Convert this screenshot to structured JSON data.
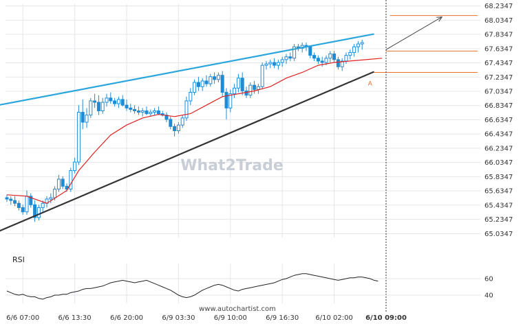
{
  "chart_data": {
    "type": "candlestick",
    "y_ticks": [
      "68.2347",
      "68.0347",
      "67.8347",
      "67.6347",
      "67.4347",
      "67.2347",
      "67.0347",
      "66.8347",
      "66.6347",
      "66.4347",
      "66.2347",
      "66.0347",
      "65.8347",
      "65.6347",
      "65.4347",
      "65.2347",
      "65.0347"
    ],
    "y_range": [
      64.98,
      68.26
    ],
    "x_ticks": [
      {
        "label": "6/6 07:00",
        "index": 4
      },
      {
        "label": "6/6 13:30",
        "index": 17
      },
      {
        "label": "6/6 20:00",
        "index": 30
      },
      {
        "label": "6/9 03:30",
        "index": 43
      },
      {
        "label": "6/9 10:00",
        "index": 56
      },
      {
        "label": "6/9 16:30",
        "index": 69
      },
      {
        "label": "6/10 02:00",
        "index": 82
      },
      {
        "label": "6/10 09:00",
        "index": 95,
        "bold": true
      }
    ],
    "candles": [
      [
        65.54,
        65.58,
        65.48,
        65.52
      ],
      [
        65.52,
        65.56,
        65.44,
        65.5
      ],
      [
        65.5,
        65.56,
        65.42,
        65.46
      ],
      [
        65.46,
        65.5,
        65.36,
        65.4
      ],
      [
        65.4,
        65.44,
        65.3,
        65.34
      ],
      [
        65.34,
        65.64,
        65.3,
        65.56
      ],
      [
        65.56,
        65.6,
        65.4,
        65.44
      ],
      [
        65.44,
        65.5,
        65.2,
        65.26
      ],
      [
        65.26,
        65.44,
        65.22,
        65.4
      ],
      [
        65.4,
        65.5,
        65.34,
        65.46
      ],
      [
        65.46,
        65.56,
        65.4,
        65.52
      ],
      [
        65.52,
        65.6,
        65.46,
        65.54
      ],
      [
        65.54,
        65.7,
        65.5,
        65.66
      ],
      [
        65.66,
        65.86,
        65.62,
        65.8
      ],
      [
        65.8,
        65.84,
        65.66,
        65.7
      ],
      [
        65.7,
        65.74,
        65.62,
        65.66
      ],
      [
        65.66,
        65.96,
        65.62,
        65.92
      ],
      [
        65.92,
        66.1,
        65.88,
        66.04
      ],
      [
        66.04,
        66.84,
        66.0,
        66.74
      ],
      [
        66.74,
        66.92,
        66.5,
        66.6
      ],
      [
        66.6,
        66.8,
        66.52,
        66.7
      ],
      [
        66.7,
        66.94,
        66.66,
        66.9
      ],
      [
        66.9,
        67.0,
        66.8,
        66.88
      ],
      [
        66.88,
        66.98,
        66.7,
        66.76
      ],
      [
        66.76,
        66.94,
        66.72,
        66.88
      ],
      [
        66.88,
        67.0,
        66.82,
        66.94
      ],
      [
        66.94,
        67.02,
        66.86,
        66.9
      ],
      [
        66.9,
        66.94,
        66.82,
        66.86
      ],
      [
        66.86,
        66.96,
        66.8,
        66.92
      ],
      [
        66.92,
        66.98,
        66.82,
        66.84
      ],
      [
        66.84,
        66.92,
        66.76,
        66.8
      ],
      [
        66.8,
        66.86,
        66.74,
        66.78
      ],
      [
        66.78,
        66.84,
        66.72,
        66.76
      ],
      [
        66.76,
        66.82,
        66.7,
        66.74
      ],
      [
        66.74,
        66.8,
        66.68,
        66.76
      ],
      [
        66.76,
        66.82,
        66.7,
        66.72
      ],
      [
        66.72,
        66.78,
        66.68,
        66.74
      ],
      [
        66.74,
        66.8,
        66.7,
        66.76
      ],
      [
        66.76,
        66.82,
        66.7,
        66.72
      ],
      [
        66.72,
        66.76,
        66.68,
        66.7
      ],
      [
        66.7,
        66.74,
        66.6,
        66.64
      ],
      [
        66.64,
        66.68,
        66.5,
        66.54
      ],
      [
        66.54,
        66.58,
        66.4,
        66.48
      ],
      [
        66.48,
        66.6,
        66.44,
        66.56
      ],
      [
        66.56,
        66.7,
        66.52,
        66.66
      ],
      [
        66.66,
        66.96,
        66.62,
        66.9
      ],
      [
        66.9,
        67.08,
        66.84,
        67.02
      ],
      [
        67.02,
        67.2,
        66.98,
        67.16
      ],
      [
        67.16,
        67.24,
        67.04,
        67.1
      ],
      [
        67.1,
        67.22,
        67.04,
        67.18
      ],
      [
        67.18,
        67.26,
        67.1,
        67.14
      ],
      [
        67.14,
        67.28,
        67.1,
        67.24
      ],
      [
        67.24,
        67.3,
        67.14,
        67.2
      ],
      [
        67.2,
        67.3,
        67.16,
        67.26
      ],
      [
        67.26,
        67.32,
        66.96,
        67.02
      ],
      [
        67.02,
        67.08,
        66.64,
        66.8
      ],
      [
        66.8,
        67.06,
        66.74,
        67.0
      ],
      [
        67.0,
        67.14,
        66.94,
        67.08
      ],
      [
        67.08,
        67.28,
        67.02,
        67.22
      ],
      [
        67.22,
        67.3,
        66.98,
        67.04
      ],
      [
        67.04,
        67.1,
        66.94,
        66.98
      ],
      [
        66.98,
        67.16,
        66.94,
        67.12
      ],
      [
        67.12,
        67.18,
        67.0,
        67.06
      ],
      [
        67.06,
        67.14,
        67.0,
        67.1
      ],
      [
        67.1,
        67.44,
        67.06,
        67.4
      ],
      [
        67.4,
        67.46,
        67.34,
        67.42
      ],
      [
        67.42,
        67.48,
        67.36,
        67.44
      ],
      [
        67.44,
        67.5,
        67.36,
        67.4
      ],
      [
        67.4,
        67.48,
        67.34,
        67.44
      ],
      [
        67.44,
        67.52,
        67.38,
        67.48
      ],
      [
        67.48,
        67.56,
        67.42,
        67.52
      ],
      [
        67.52,
        67.58,
        67.46,
        67.5
      ],
      [
        67.5,
        67.7,
        67.46,
        67.66
      ],
      [
        67.66,
        67.7,
        67.6,
        67.64
      ],
      [
        67.64,
        67.72,
        67.58,
        67.68
      ],
      [
        67.68,
        67.72,
        67.6,
        67.66
      ],
      [
        67.66,
        67.68,
        67.5,
        67.54
      ],
      [
        67.54,
        67.58,
        67.46,
        67.5
      ],
      [
        67.5,
        67.54,
        67.42,
        67.46
      ],
      [
        67.46,
        67.52,
        67.38,
        67.44
      ],
      [
        67.44,
        67.54,
        67.4,
        67.5
      ],
      [
        67.5,
        67.6,
        67.44,
        67.56
      ],
      [
        67.56,
        67.6,
        67.44,
        67.48
      ],
      [
        67.48,
        67.52,
        67.34,
        67.38
      ],
      [
        67.38,
        67.5,
        67.32,
        67.46
      ],
      [
        67.46,
        67.58,
        67.42,
        67.54
      ],
      [
        67.54,
        67.62,
        67.48,
        67.58
      ],
      [
        67.58,
        67.7,
        67.52,
        67.66
      ],
      [
        67.66,
        67.74,
        67.58,
        67.7
      ],
      [
        67.7,
        67.76,
        67.62,
        67.72
      ]
    ],
    "ma": [
      [
        0,
        65.58
      ],
      [
        5,
        65.56
      ],
      [
        10,
        65.46
      ],
      [
        15,
        65.64
      ],
      [
        18,
        65.92
      ],
      [
        22,
        66.18
      ],
      [
        26,
        66.42
      ],
      [
        30,
        66.56
      ],
      [
        34,
        66.66
      ],
      [
        38,
        66.71
      ],
      [
        42,
        66.68
      ],
      [
        46,
        66.72
      ],
      [
        50,
        66.84
      ],
      [
        54,
        66.96
      ],
      [
        58,
        67.0
      ],
      [
        62,
        67.04
      ],
      [
        66,
        67.1
      ],
      [
        70,
        67.22
      ],
      [
        74,
        67.3
      ],
      [
        78,
        67.4
      ],
      [
        82,
        67.44
      ],
      [
        86,
        67.46
      ],
      [
        90,
        67.48
      ],
      [
        94,
        67.5
      ]
    ],
    "resistance_line": [
      [
        -4,
        66.82
      ],
      [
        92,
        67.84
      ]
    ],
    "support_line": [
      [
        -4,
        65.02
      ],
      [
        92,
        67.31
      ]
    ],
    "forecast_arrow": [
      [
        95,
        67.62
      ],
      [
        109,
        68.08
      ]
    ],
    "levels": [
      {
        "value": 68.1,
        "from_index": 96
      },
      {
        "value": 67.6,
        "from_index": 95
      },
      {
        "value": 67.3,
        "from_index": 92
      }
    ],
    "point_label": {
      "text": "A",
      "index": 91,
      "value": 67.25
    },
    "vertical_marker_index": 95,
    "rsi": {
      "title": "RSI",
      "ticks": [
        "60",
        "40"
      ],
      "range": [
        30,
        75
      ],
      "values": [
        45,
        43,
        41,
        40,
        41,
        39,
        38,
        38,
        36,
        35,
        37,
        38,
        40,
        40,
        41,
        41,
        43,
        44,
        45,
        47,
        48,
        48,
        49,
        50,
        51,
        53,
        55,
        56,
        57,
        58,
        57,
        56,
        55,
        56,
        57,
        58,
        56,
        54,
        52,
        50,
        48,
        46,
        43,
        40,
        38,
        37,
        38,
        40,
        43,
        46,
        48,
        50,
        52,
        53,
        52,
        50,
        48,
        46,
        45,
        47,
        48,
        49,
        50,
        51,
        52,
        53,
        54,
        55,
        57,
        59,
        60,
        62,
        64,
        65,
        66,
        66,
        65,
        64,
        63,
        62,
        61,
        60,
        59,
        58,
        59,
        60,
        61,
        61,
        62,
        62,
        61,
        60,
        58,
        57
      ]
    },
    "watermark": "What2Trade",
    "source": "www.autochartist.com",
    "colors": {
      "resistance": "#2aa6dc",
      "support": "#333333",
      "candle": "#1e8bd4",
      "ma": "#e02020",
      "level": "#e8702a",
      "grid": "#e3e6ea"
    }
  }
}
